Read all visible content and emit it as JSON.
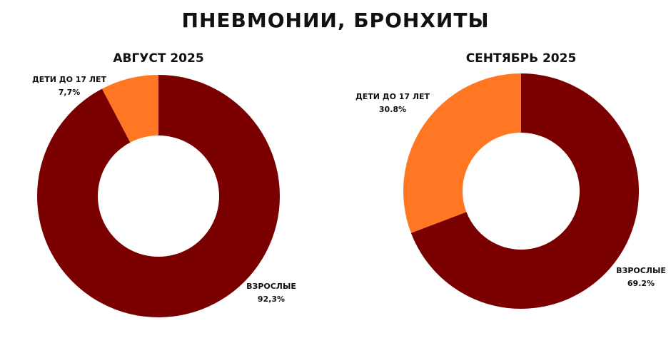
{
  "title": "ПНЕВМОНИИ, БРОНХИТЫ",
  "chart_data": [
    {
      "type": "pie",
      "title": "АВГУСТ 2025",
      "categories": [
        "ВЗРОСЛЫЕ",
        "ДЕТИ ДО 17 ЛЕТ"
      ],
      "values": [
        92.3,
        7.7
      ],
      "value_labels": [
        "92,3%",
        "7,7%"
      ],
      "colors": [
        "#7a0000",
        "#ff7722"
      ]
    },
    {
      "type": "pie",
      "title": "СЕНТЯБРЬ 2025",
      "categories": [
        "ВЗРОСЛЫЕ",
        "ДЕТИ ДО 17 ЛЕТ"
      ],
      "values": [
        69.2,
        30.8
      ],
      "value_labels": [
        "69.2%",
        "30.8%"
      ],
      "colors": [
        "#7a0000",
        "#ff7722"
      ]
    }
  ]
}
